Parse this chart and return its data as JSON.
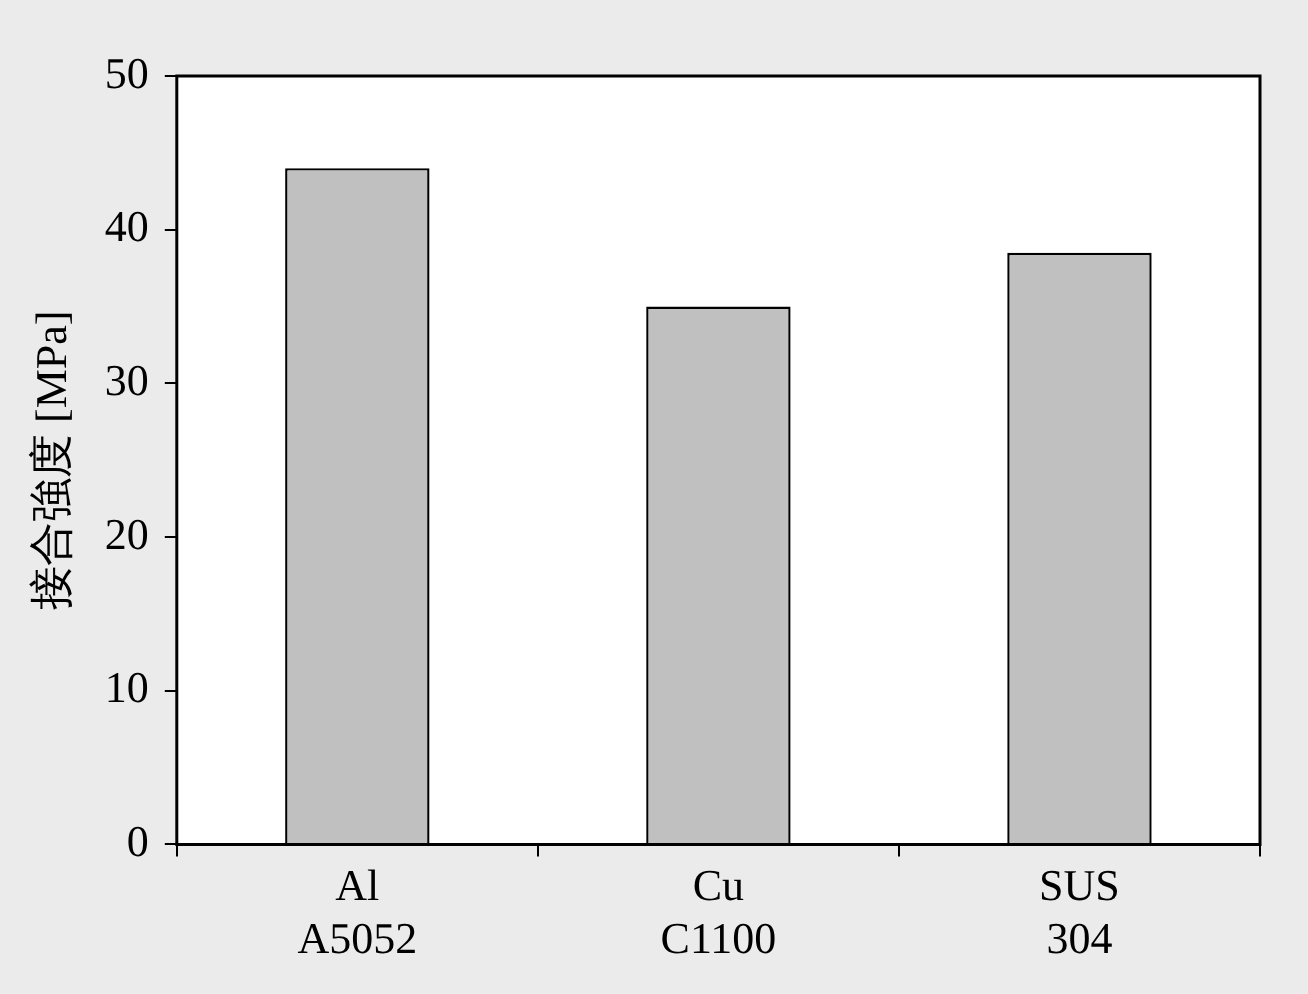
{
  "chart_data": {
    "type": "bar",
    "ylabel": "接合強度 [MPa]",
    "categories": [
      "Al\nA5052",
      "Cu\nC1100",
      "SUS\n304"
    ],
    "values": [
      44,
      35,
      38.5
    ],
    "color": "#c0c0c0",
    "ylim": [
      0,
      50
    ],
    "yticks": [
      0,
      10,
      20,
      30,
      40,
      50
    ],
    "grid": false,
    "legend": false
  }
}
